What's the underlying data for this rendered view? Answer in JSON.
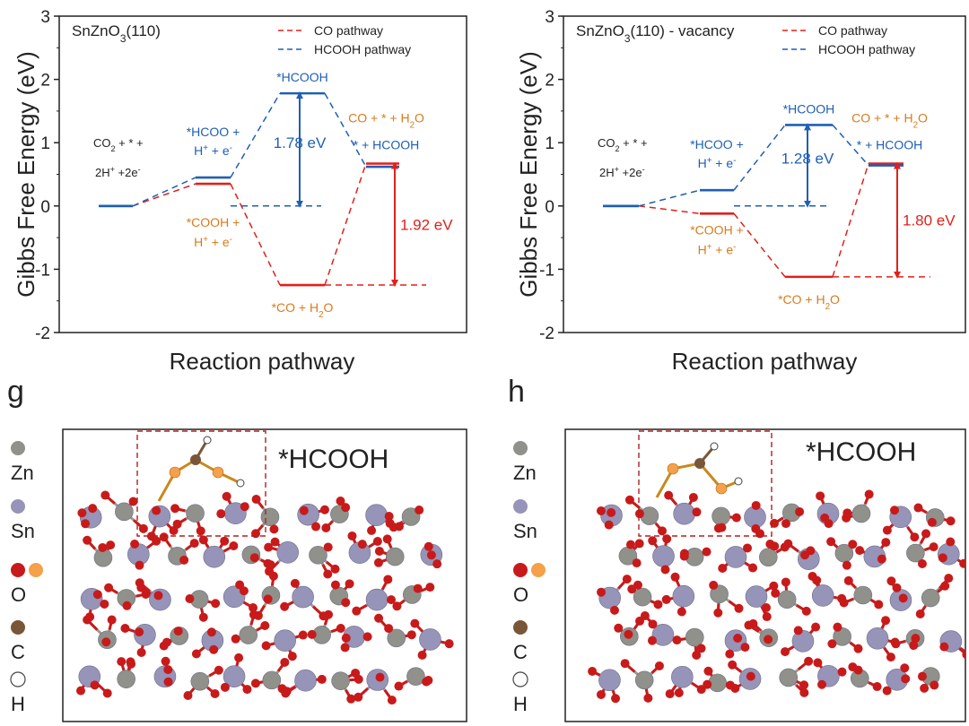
{
  "chart_data": [
    {
      "type": "energy-diagram",
      "title": "SnZnO3(110)",
      "title_parts": [
        "SnZnO",
        "3",
        "(110)"
      ],
      "xlabel": "Reaction pathway",
      "ylabel": "Gibbs Free Energy (eV)",
      "ylim": [
        -2,
        3
      ],
      "yticks": [
        "-2",
        "-1",
        "0",
        "1",
        "2",
        "3"
      ],
      "legend": {
        "placement": "top-right",
        "entries": [
          "CO pathway",
          "HCOOH pathway"
        ]
      },
      "series": [
        {
          "name": "CO pathway",
          "color": "#e0201c",
          "levels": [
            0.0,
            0.35,
            -1.25,
            0.67
          ]
        },
        {
          "name": "HCOOH pathway",
          "color": "#1f5fb4",
          "levels": [
            0.0,
            0.45,
            1.78,
            0.62
          ]
        }
      ],
      "annotations": {
        "start_line1": "CO",
        "start_sub": "2",
        "start_line1_rest": " + * +",
        "start_line2": "2H",
        "start_sup1": "+",
        "start_line2_rest": " +2e",
        "start_sup2": "-",
        "hcoo_line1": "*HCOO +",
        "hcoo_line2a": "H",
        "hcoo_sup1": "+",
        "hcoo_line2b": " + e",
        "hcoo_sup2": "-",
        "hcooh_label": "*HCOOH",
        "cooh_line1": "*COOH +",
        "cooh_line2a": "H",
        "cooh_sup1": "+",
        "cooh_line2b": " + e",
        "cooh_sup2": "-",
        "co_h2o_a": "*CO + H",
        "co_h2o_sub": "2",
        "co_h2o_b": "O",
        "final_co_a": "CO + * + H",
        "final_co_sub": "2",
        "final_co_b": "O",
        "final_hcooh": "* + HCOOH",
        "barrier_blue": "1.78 eV",
        "barrier_red": "1.92 eV"
      }
    },
    {
      "type": "energy-diagram",
      "title": "SnZnO3(110) - vacancy",
      "title_parts": [
        "SnZnO",
        "3",
        "(110) - vacancy"
      ],
      "xlabel": "Reaction pathway",
      "ylabel": "Gibbs Free Energy (eV)",
      "ylim": [
        -2,
        3
      ],
      "yticks": [
        "-2",
        "-1",
        "0",
        "1",
        "2",
        "3"
      ],
      "legend": {
        "placement": "top-right",
        "entries": [
          "CO pathway",
          "HCOOH pathway"
        ]
      },
      "series": [
        {
          "name": "CO pathway",
          "color": "#e0201c",
          "levels": [
            0.0,
            -0.12,
            -1.12,
            0.67
          ]
        },
        {
          "name": "HCOOH pathway",
          "color": "#1f5fb4",
          "levels": [
            0.0,
            0.25,
            1.28,
            0.64
          ]
        }
      ],
      "annotations": {
        "start_line1": "CO",
        "start_sub": "2",
        "start_line1_rest": " + * +",
        "start_line2": "2H",
        "start_sup1": "+",
        "start_line2_rest": " +2e",
        "start_sup2": "-",
        "hcoo_line1": "*HCOO +",
        "hcoo_line2a": "H",
        "hcoo_sup1": "+",
        "hcoo_line2b": " + e",
        "hcoo_sup2": "-",
        "hcooh_label": "*HCOOH",
        "cooh_line1": "*COOH +",
        "cooh_line2a": "H",
        "cooh_sup1": "+",
        "cooh_line2b": " + e",
        "cooh_sup2": "-",
        "co_h2o_a": "*CO + H",
        "co_h2o_sub": "2",
        "co_h2o_b": "O",
        "final_co_a": "CO + * + H",
        "final_co_sub": "2",
        "final_co_b": "O",
        "final_hcooh": "* + HCOOH",
        "barrier_blue": "1.28 eV",
        "barrier_red": "1.80 eV"
      }
    }
  ],
  "panels": {
    "g": {
      "letter": "g",
      "label": "*HCOOH"
    },
    "h": {
      "letter": "h",
      "label": "*HCOOH"
    }
  },
  "legend_atoms": [
    {
      "symbol": "Zn",
      "colors": [
        "#8f918a"
      ]
    },
    {
      "symbol": "Sn",
      "colors": [
        "#9694b8"
      ]
    },
    {
      "symbol": "O",
      "colors": [
        "#c81a1a",
        "#f5a04a"
      ]
    },
    {
      "symbol": "C",
      "colors": [
        "#7a5638"
      ]
    },
    {
      "symbol": "H",
      "colors": [
        "#ffffff"
      ]
    }
  ]
}
